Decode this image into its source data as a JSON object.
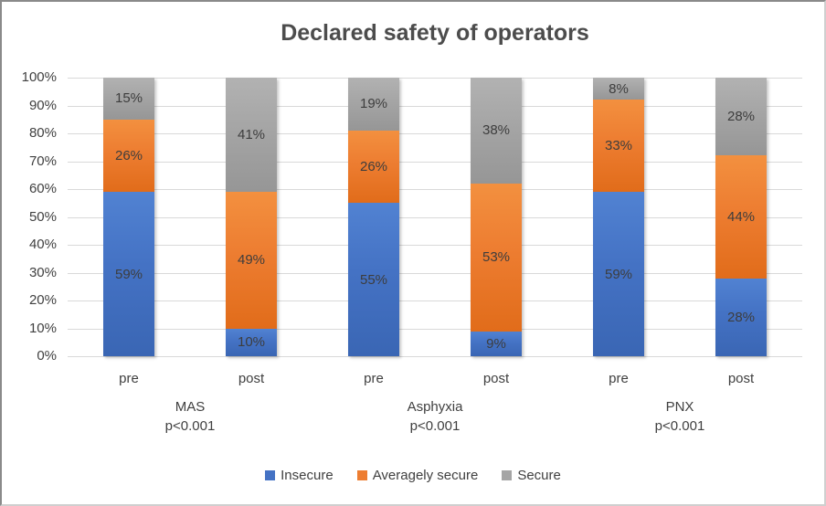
{
  "chart_data": {
    "type": "bar",
    "stacked": true,
    "title": "Declared safety of operators",
    "y_axis": {
      "min": 0,
      "max": 100,
      "tick_step": 10,
      "ticks_top_to_bottom": [
        "100%",
        "90%",
        "80%",
        "70%",
        "60%",
        "50%",
        "40%",
        "30%",
        "20%",
        "10%",
        "0%"
      ],
      "grid": "horizontal"
    },
    "series": [
      {
        "name": "Insecure",
        "color": "#4472C4"
      },
      {
        "name": "Averagely secure",
        "color": "#ED7D31"
      },
      {
        "name": "Secure",
        "color": "#A5A5A5"
      }
    ],
    "groups": [
      {
        "label": "MAS",
        "sublabel": "p<0.001",
        "bars": [
          {
            "tick": "pre",
            "values": [
              59,
              26,
              15
            ]
          },
          {
            "tick": "post",
            "values": [
              10,
              49,
              41
            ]
          }
        ]
      },
      {
        "label": "Asphyxia",
        "sublabel": "p<0.001",
        "bars": [
          {
            "tick": "pre",
            "values": [
              55,
              26,
              19
            ]
          },
          {
            "tick": "post",
            "values": [
              9,
              53,
              38
            ]
          }
        ]
      },
      {
        "label": "PNX",
        "sublabel": "p<0.001",
        "bars": [
          {
            "tick": "pre",
            "values": [
              59,
              33,
              8
            ]
          },
          {
            "tick": "post",
            "values": [
              28,
              44,
              28
            ]
          }
        ]
      }
    ],
    "legend_position": "bottom"
  }
}
